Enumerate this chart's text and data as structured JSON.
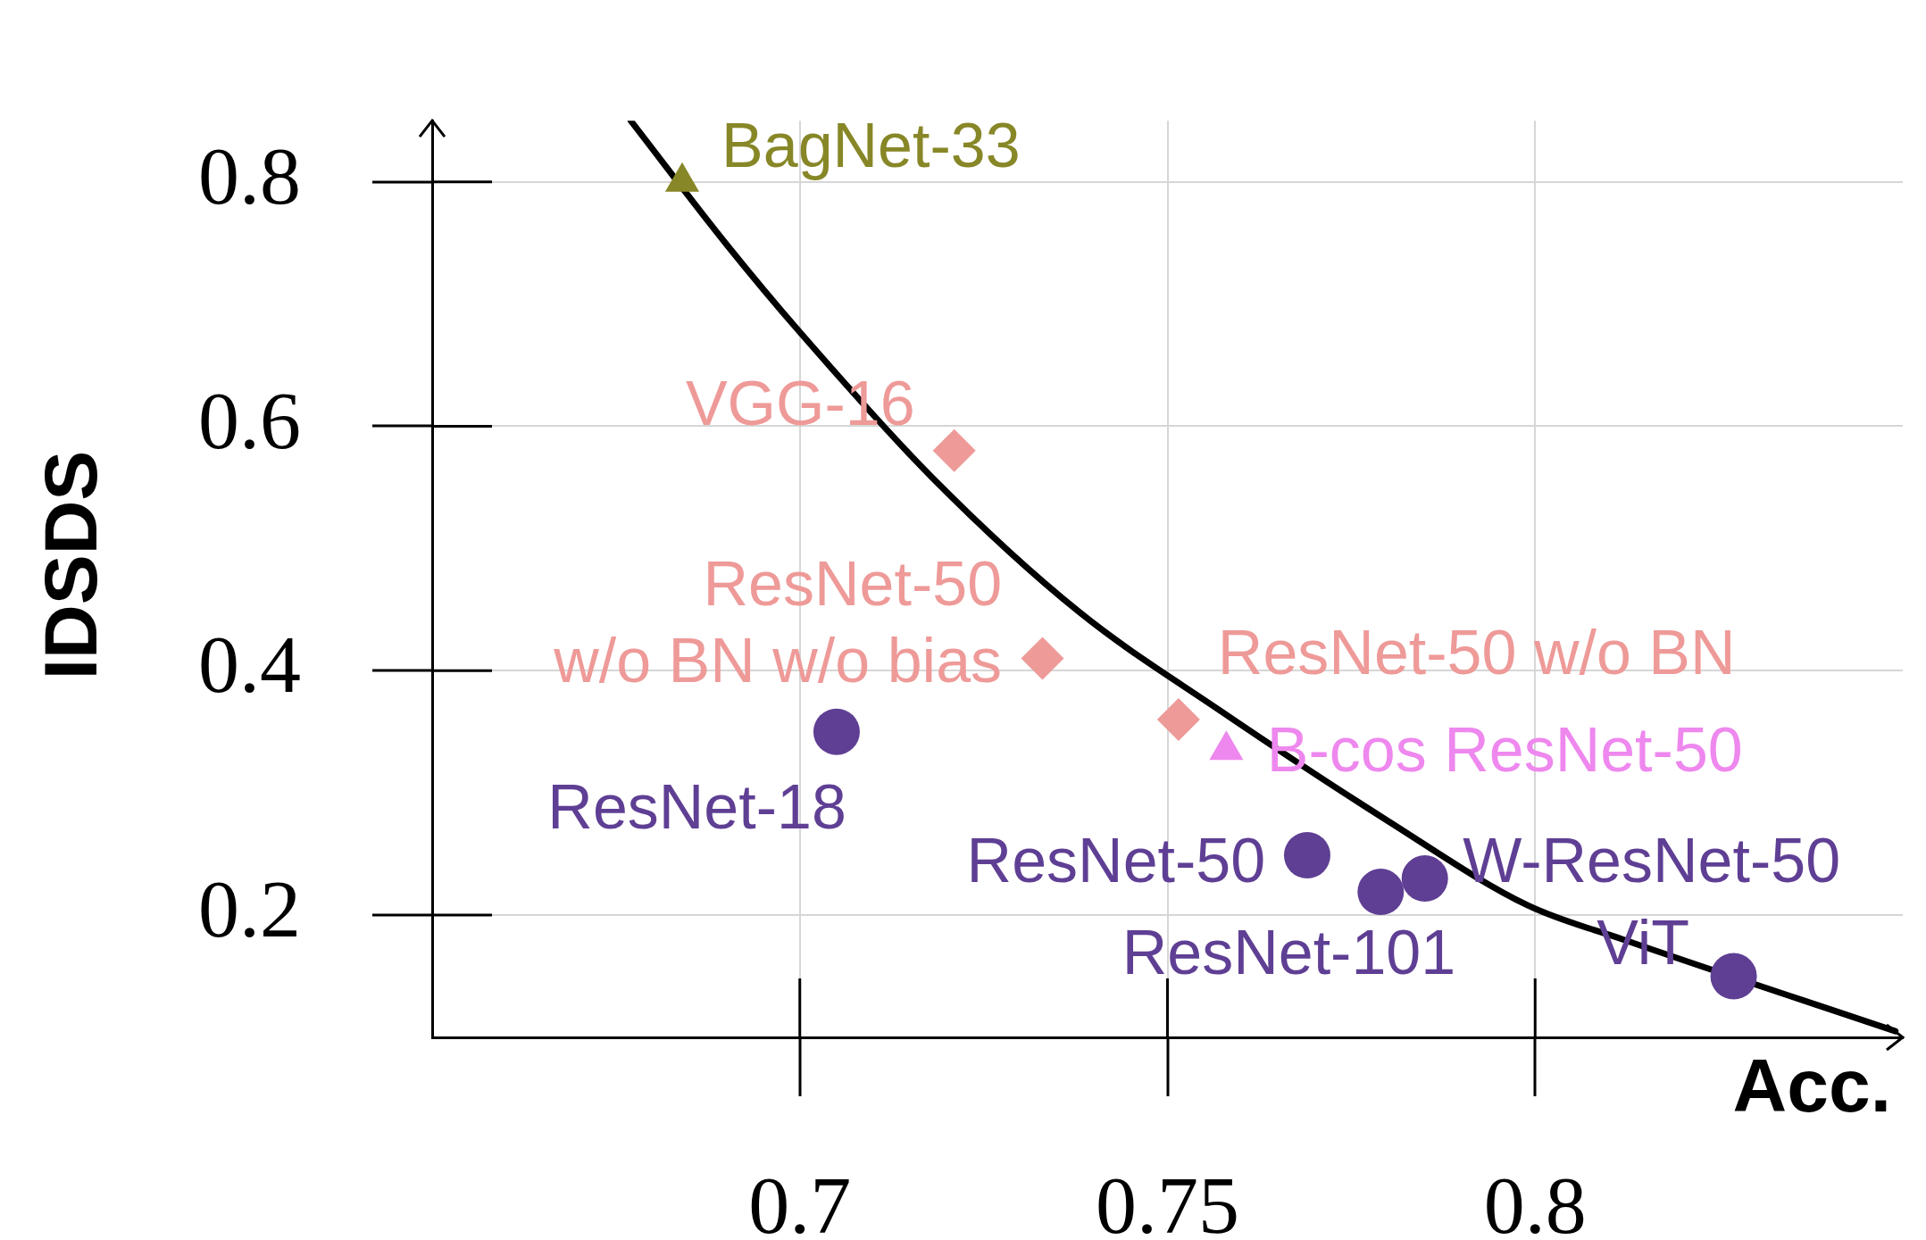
{
  "chart_data": {
    "type": "scatter",
    "xlabel": "Acc.",
    "ylabel": "IDSDS",
    "xlim": [
      0.65,
      0.85
    ],
    "ylim": [
      0.1,
      0.85
    ],
    "xticks": [
      0.7,
      0.75,
      0.8
    ],
    "yticks": [
      0.2,
      0.4,
      0.6,
      0.8
    ],
    "grid": true,
    "series": [
      {
        "name": "BagNet-33",
        "color": "#878728",
        "marker": "triangle",
        "x": [
          0.684
        ],
        "values": [
          0.8
        ]
      },
      {
        "name": "VGG-16",
        "color": "#ee9a98",
        "marker": "diamond",
        "x": [
          0.721
        ],
        "values": [
          0.58
        ]
      },
      {
        "name": "ResNet-50\nw/o BN w/o bias",
        "color": "#ee9a98",
        "marker": "diamond",
        "x": [
          0.733
        ],
        "values": [
          0.41
        ]
      },
      {
        "name": "ResNet-50 w/o BN",
        "color": "#ee9a98",
        "marker": "diamond",
        "x": [
          0.7515
        ],
        "values": [
          0.36
        ]
      },
      {
        "name": "B-cos ResNet-50",
        "color": "#ee88ee",
        "marker": "triangle",
        "x": [
          0.758
        ],
        "values": [
          0.335
        ]
      },
      {
        "name": "ResNet-18",
        "color": "#5f3f94",
        "marker": "circle",
        "x": [
          0.705
        ],
        "values": [
          0.35
        ]
      },
      {
        "name": "ResNet-50",
        "color": "#5f3f94",
        "marker": "circle",
        "x": [
          0.769
        ],
        "values": [
          0.249
        ]
      },
      {
        "name": "ResNet-101",
        "color": "#5f3f94",
        "marker": "circle",
        "x": [
          0.779
        ],
        "values": [
          0.219
        ]
      },
      {
        "name": "W-ResNet-50",
        "color": "#5f3f94",
        "marker": "circle",
        "x": [
          0.785
        ],
        "values": [
          0.23
        ]
      },
      {
        "name": "ViT",
        "color": "#5f3f94",
        "marker": "circle",
        "x": [
          0.827
        ],
        "values": [
          0.15
        ]
      },
      {
        "type": "line",
        "color": "#000000",
        "marker": "none",
        "x": [
          0.677,
          0.69,
          0.7,
          0.718,
          0.738,
          0.757,
          0.78,
          0.799,
          0.812,
          0.849
        ],
        "values": [
          0.85,
          0.749,
          0.677,
          0.558,
          0.448,
          0.368,
          0.277,
          0.208,
          0.18,
          0.105
        ]
      }
    ]
  }
}
